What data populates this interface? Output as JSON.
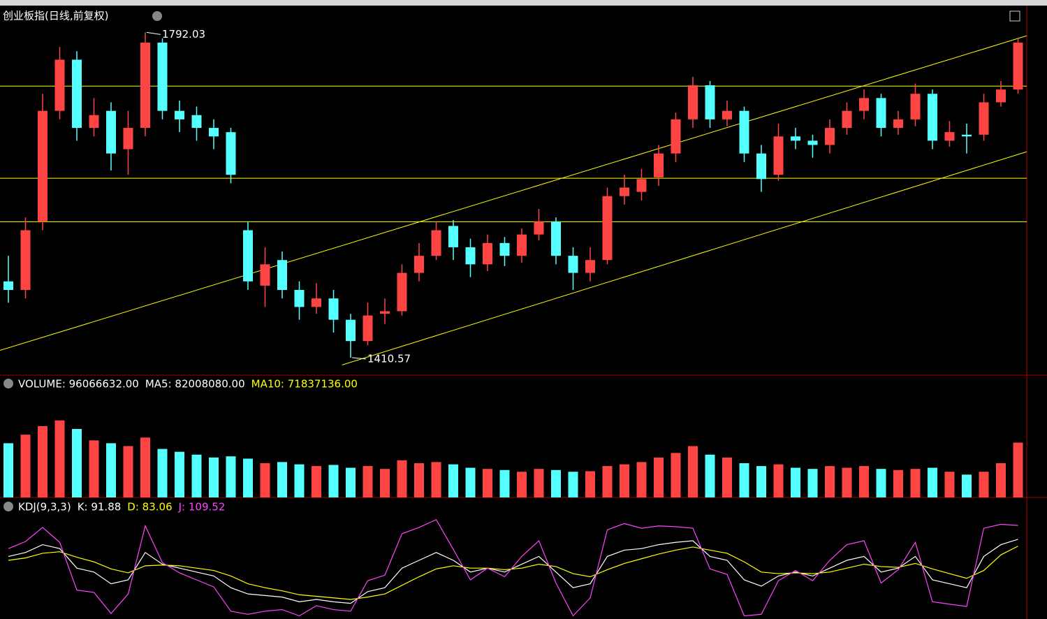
{
  "chart_data": {
    "type": "candlestick",
    "title": "创业板指(日线,前复权)",
    "up_color": "#ff4444",
    "down_color": "#54ffff",
    "ylim": [
      1390,
      1830
    ],
    "candles": [
      [
        1500,
        1530,
        1475,
        1490
      ],
      [
        1490,
        1575,
        1480,
        1560
      ],
      [
        1570,
        1720,
        1560,
        1700
      ],
      [
        1700,
        1775,
        1690,
        1760
      ],
      [
        1760,
        1770,
        1665,
        1680
      ],
      [
        1680,
        1715,
        1670,
        1695
      ],
      [
        1700,
        1710,
        1630,
        1650
      ],
      [
        1655,
        1700,
        1625,
        1680
      ],
      [
        1680,
        1792.03,
        1670,
        1780
      ],
      [
        1780,
        1785,
        1690,
        1700
      ],
      [
        1700,
        1712,
        1675,
        1690
      ],
      [
        1695,
        1705,
        1665,
        1680
      ],
      [
        1680,
        1690,
        1655,
        1670
      ],
      [
        1675,
        1680,
        1615,
        1625
      ],
      [
        1560,
        1570,
        1490,
        1500
      ],
      [
        1495,
        1540,
        1470,
        1520
      ],
      [
        1525,
        1535,
        1480,
        1490
      ],
      [
        1490,
        1500,
        1455,
        1470
      ],
      [
        1470,
        1498,
        1462,
        1480
      ],
      [
        1480,
        1490,
        1440,
        1455
      ],
      [
        1455,
        1462,
        1410.57,
        1430
      ],
      [
        1430,
        1475,
        1425,
        1460
      ],
      [
        1462,
        1480,
        1450,
        1465
      ],
      [
        1465,
        1520,
        1460,
        1510
      ],
      [
        1510,
        1545,
        1500,
        1530
      ],
      [
        1530,
        1570,
        1525,
        1560
      ],
      [
        1565,
        1572,
        1525,
        1540
      ],
      [
        1540,
        1550,
        1505,
        1520
      ],
      [
        1520,
        1555,
        1512,
        1545
      ],
      [
        1545,
        1552,
        1518,
        1530
      ],
      [
        1530,
        1562,
        1522,
        1555
      ],
      [
        1555,
        1585,
        1548,
        1570
      ],
      [
        1570,
        1575,
        1520,
        1530
      ],
      [
        1530,
        1540,
        1490,
        1510
      ],
      [
        1510,
        1540,
        1500,
        1525
      ],
      [
        1525,
        1610,
        1520,
        1600
      ],
      [
        1600,
        1625,
        1590,
        1610
      ],
      [
        1605,
        1632,
        1595,
        1620
      ],
      [
        1622,
        1660,
        1612,
        1650
      ],
      [
        1650,
        1698,
        1640,
        1690
      ],
      [
        1690,
        1740,
        1680,
        1730
      ],
      [
        1730,
        1735,
        1680,
        1690
      ],
      [
        1690,
        1712,
        1682,
        1700
      ],
      [
        1700,
        1705,
        1640,
        1650
      ],
      [
        1650,
        1660,
        1605,
        1620
      ],
      [
        1625,
        1685,
        1618,
        1670
      ],
      [
        1670,
        1680,
        1655,
        1665
      ],
      [
        1665,
        1672,
        1645,
        1660
      ],
      [
        1660,
        1690,
        1650,
        1680
      ],
      [
        1680,
        1710,
        1672,
        1700
      ],
      [
        1700,
        1725,
        1690,
        1715
      ],
      [
        1715,
        1720,
        1670,
        1680
      ],
      [
        1680,
        1700,
        1672,
        1690
      ],
      [
        1690,
        1732,
        1682,
        1720
      ],
      [
        1720,
        1725,
        1655,
        1665
      ],
      [
        1665,
        1688,
        1658,
        1675
      ],
      [
        1672,
        1685,
        1650,
        1670
      ],
      [
        1672,
        1720,
        1665,
        1710
      ],
      [
        1710,
        1735,
        1705,
        1725
      ],
      [
        1725,
        1785,
        1720,
        1780
      ]
    ],
    "levels": [
      1729,
      1621,
      1570
    ],
    "level_color": "#ffff00",
    "trendlines": [
      {
        "from": [
          -0.5,
          1419
        ],
        "to": [
          59.5,
          1788
        ]
      },
      {
        "from": [
          19.5,
          1402
        ],
        "to": [
          59.5,
          1652
        ]
      }
    ],
    "volume_header": [
      "VOLUME: 96066632.00",
      "MA5: 82008080.00",
      "MA10: 71837136.00"
    ],
    "volume_header_colors": [
      "#ffffff",
      "#ffffff",
      "#ffff00"
    ],
    "volume_ylim": [
      0,
      180000000
    ],
    "volume": [
      95000000,
      110000000,
      125000000,
      135000000,
      120000000,
      100000000,
      95000000,
      90000000,
      105000000,
      85000000,
      80000000,
      75000000,
      70000000,
      72000000,
      68000000,
      60000000,
      62000000,
      58000000,
      55000000,
      57000000,
      52000000,
      55000000,
      50000000,
      65000000,
      60000000,
      62000000,
      58000000,
      52000000,
      50000000,
      48000000,
      45000000,
      50000000,
      48000000,
      45000000,
      46000000,
      55000000,
      58000000,
      62000000,
      70000000,
      78000000,
      90000000,
      75000000,
      70000000,
      60000000,
      55000000,
      58000000,
      52000000,
      50000000,
      55000000,
      52000000,
      55000000,
      50000000,
      48000000,
      50000000,
      52000000,
      45000000,
      40000000,
      45000000,
      60000000,
      96066632
    ],
    "kdj_header": [
      "KDJ(9,3,3)",
      "K: 91.88",
      "D: 83.06",
      "J: 109.52"
    ],
    "kdj_header_colors": [
      "#ffffff",
      "#ffffff",
      "#ffff00",
      "#ff44ff"
    ],
    "kdj_ylim": [
      -10,
      140
    ],
    "kdj_lines": [
      {
        "color": "#ffffff",
        "values": [
          70,
          75,
          85,
          80,
          55,
          50,
          35,
          40,
          75,
          60,
          55,
          50,
          45,
          30,
          22,
          20,
          18,
          12,
          15,
          12,
          10,
          25,
          30,
          55,
          65,
          75,
          65,
          50,
          55,
          50,
          60,
          70,
          50,
          30,
          35,
          70,
          78,
          80,
          85,
          88,
          90,
          70,
          65,
          40,
          32,
          45,
          50,
          45,
          55,
          65,
          70,
          50,
          55,
          70,
          40,
          35,
          30,
          70,
          85,
          91.88
        ]
      },
      {
        "color": "#ffff00",
        "values": [
          65,
          68,
          74,
          76,
          69,
          63,
          54,
          49,
          58,
          59,
          58,
          55,
          52,
          45,
          35,
          30,
          26,
          21,
          19,
          17,
          15,
          18,
          22,
          33,
          44,
          54,
          58,
          55,
          55,
          53,
          55,
          60,
          57,
          48,
          44,
          53,
          61,
          67,
          73,
          78,
          82,
          78,
          74,
          63,
          50,
          48,
          49,
          48,
          50,
          55,
          60,
          57,
          56,
          61,
          54,
          48,
          42,
          52,
          72,
          83.06
        ]
      },
      {
        "color": "#ff44ff",
        "values": [
          80,
          89,
          107,
          88,
          27,
          24,
          -3,
          22,
          109,
          62,
          49,
          40,
          31,
          0,
          -4,
          0,
          2,
          -6,
          7,
          2,
          0,
          39,
          46,
          99,
          107,
          117,
          79,
          40,
          55,
          44,
          70,
          90,
          36,
          -6,
          17,
          104,
          112,
          106,
          109,
          108,
          106,
          54,
          47,
          -6,
          -4,
          39,
          52,
          39,
          65,
          85,
          90,
          36,
          53,
          88,
          12,
          9,
          6,
          106,
          111,
          109.52
        ]
      }
    ]
  }
}
